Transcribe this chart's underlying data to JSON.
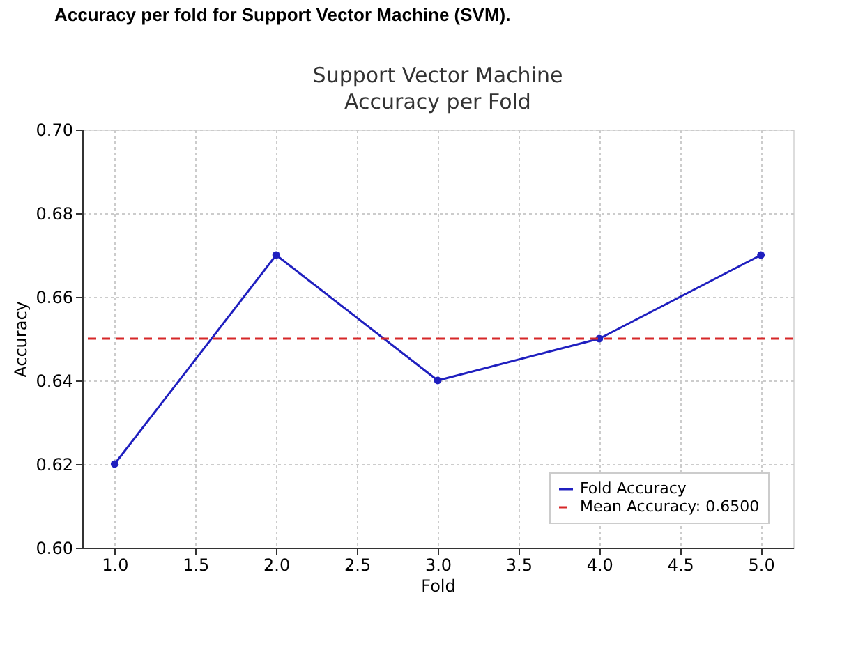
{
  "chart_data": {
    "type": "line",
    "title": [
      "Support Vector Machine",
      "Accuracy per Fold"
    ],
    "xlabel": "Fold",
    "ylabel": "Accuracy",
    "annotations": [
      "Accuracy per fold for Support Vector Machine (SVM)."
    ],
    "x": [
      1,
      2,
      3,
      4,
      5
    ],
    "series": [
      {
        "name": "Fold Accuracy",
        "color": "#1f1fbf",
        "values": [
          0.62,
          0.67,
          0.64,
          0.65,
          0.67
        ]
      }
    ],
    "ref_lines": [
      {
        "axis": "y",
        "value": 0.65,
        "label": "Mean Accuracy: 0.6500",
        "color": "#d62728",
        "line_style": "dashed"
      }
    ],
    "xlim": [
      0.8,
      5.2
    ],
    "xticks": [
      {
        "value": 1,
        "label": "1.0"
      },
      {
        "value": 1.5,
        "label": "1.5"
      },
      {
        "value": 2,
        "label": "2.0"
      },
      {
        "value": 2.5,
        "label": "2.5"
      },
      {
        "value": 3,
        "label": "3.0"
      },
      {
        "value": 3.5,
        "label": "3.5"
      },
      {
        "value": 4,
        "label": "4.0"
      },
      {
        "value": 4.5,
        "label": "4.5"
      },
      {
        "value": 5,
        "label": "5.0"
      }
    ],
    "ylim": [
      0.6,
      0.7
    ],
    "yticks": [
      {
        "value": 0.6,
        "label": "0.60"
      },
      {
        "value": 0.62,
        "label": "0.62"
      },
      {
        "value": 0.64,
        "label": "0.64"
      },
      {
        "value": 0.66,
        "label": "0.66"
      },
      {
        "value": 0.68,
        "label": "0.68"
      },
      {
        "value": 0.7,
        "label": "0.70"
      }
    ],
    "grid": true,
    "legend": "bottom right",
    "marker": "circle",
    "line_style": "solid"
  }
}
